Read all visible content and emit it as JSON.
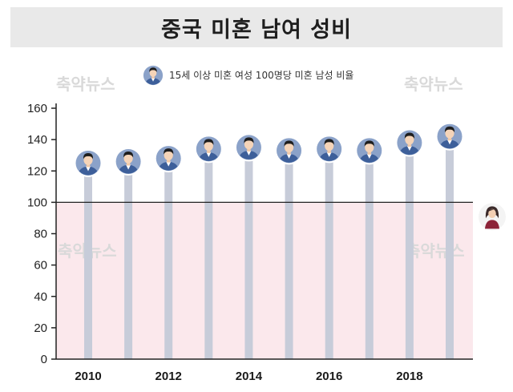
{
  "title": "중국 미혼 남여 성비",
  "legend": {
    "label": "15세 이상 미혼 여성 100명당 미혼 남성 비율",
    "icon": "male-avatar-icon"
  },
  "watermark": "축약뉴스",
  "colors": {
    "stick": "#c7ccd9",
    "circle": "#8ba2c9",
    "circle_ring": "#ffffff",
    "shirt": "#3d5f9a",
    "below_band": "#fbe8ec",
    "baseline_100": "#222222",
    "female_icon": "#8c2338"
  },
  "chart_data": {
    "type": "lollipop",
    "x": [
      2010,
      2011,
      2012,
      2013,
      2014,
      2015,
      2016,
      2017,
      2018,
      2019
    ],
    "values": [
      125,
      126,
      128,
      134,
      135,
      133,
      134,
      133,
      138,
      142
    ],
    "xticks": [
      "2010",
      "2012",
      "2014",
      "2016",
      "2018"
    ],
    "yticks": [
      "0",
      "20",
      "40",
      "60",
      "80",
      "100",
      "120",
      "140",
      "160"
    ],
    "ylim": [
      0,
      160
    ],
    "reference_line": 100,
    "reference_icon": "female-avatar-icon",
    "grid": false
  }
}
